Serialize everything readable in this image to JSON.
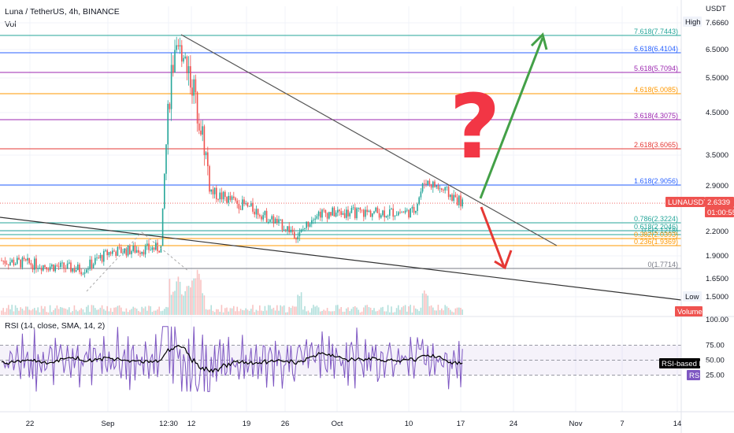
{
  "header": {
    "title": "Luna / TetherUS, 4h, BINANCE",
    "vol_label": "Vol",
    "currency": "USDT"
  },
  "price_axis": {
    "ticks": [
      "7.6660",
      "6.5000",
      "5.5000",
      "4.5000",
      "3.5000",
      "2.9000",
      "2.2000",
      "1.9000",
      "1.6500",
      "1.5000"
    ],
    "high_label": "High",
    "low_label": "Low",
    "volume_label": "Volume",
    "last_symbol": "LUNAUSDT",
    "last_price": "2.6339",
    "countdown": "01:00:55"
  },
  "fib_levels": [
    {
      "text": "7.618(7.7443)",
      "color": "#26a69a"
    },
    {
      "text": "6.618(6.4104)",
      "color": "#2962ff"
    },
    {
      "text": "5.618(5.7094)",
      "color": "#9c27b0"
    },
    {
      "text": "4.618(5.0085)",
      "color": "#ff9800"
    },
    {
      "text": "3.618(4.3075)",
      "color": "#9c27b0"
    },
    {
      "text": "2.618(3.6065)",
      "color": "#e53935"
    },
    {
      "text": "1.618(2.9056)",
      "color": "#2962ff"
    },
    {
      "text": "0.786(2.3224)",
      "color": "#26a69a"
    },
    {
      "text": "0.618(2.2046)",
      "color": "#26a69a"
    },
    {
      "text": "0.5(2.1218)",
      "color": "#26a69a"
    },
    {
      "text": "0.382(2.0393)",
      "color": "#ff9800"
    },
    {
      "text": "0.236(1.9369)",
      "color": "#ff9800"
    },
    {
      "text": "0(1.7714)",
      "color": "#787b86"
    }
  ],
  "rsi": {
    "title": "RSI (14, close, SMA, 14, 2)",
    "ticks": [
      "100.00",
      "75.00",
      "50.00",
      "25.00"
    ],
    "ma_label": "RSI-based MA",
    "rsi_label": "RSI"
  },
  "x_axis": {
    "ticks": [
      "22",
      "Sep",
      "12:30",
      "12",
      "19",
      "26",
      "Oct",
      "10",
      "17",
      "24",
      "Nov",
      "7",
      "14"
    ]
  },
  "annotations": {
    "question_mark": "?",
    "up_arrow_color": "#43a047",
    "down_arrow_color": "#e53935",
    "question_color": "#f23645"
  },
  "colors": {
    "up": "#26a69a",
    "down": "#ef5350",
    "rsi_line": "#7e57c2",
    "rsi_ma": "#000000"
  },
  "chart_data": {
    "type": "candlestick",
    "title": "Luna / TetherUS, 4h, BINANCE",
    "y_unit": "USDT",
    "y_range": [
      1.45,
      7.75
    ],
    "last_price": 2.6339,
    "price_profile": [
      {
        "date": "Aug 22",
        "price": 1.85
      },
      {
        "date": "Aug 29",
        "price": 1.75
      },
      {
        "date": "Sep 1",
        "price": 1.95
      },
      {
        "date": "Sep 5",
        "price": 2.0
      },
      {
        "date": "Sep 8",
        "price": 5.8
      },
      {
        "date": "Sep 9",
        "price": 6.6
      },
      {
        "date": "Sep 12",
        "price": 4.2
      },
      {
        "date": "Sep 14",
        "price": 2.8
      },
      {
        "date": "Sep 19",
        "price": 2.55
      },
      {
        "date": "Sep 26",
        "price": 2.15
      },
      {
        "date": "Oct 3",
        "price": 2.48
      },
      {
        "date": "Oct 10",
        "price": 2.5
      },
      {
        "date": "Oct 12",
        "price": 3.0
      },
      {
        "date": "Oct 16",
        "price": 2.63
      }
    ],
    "rsi_range": [
      0,
      100
    ],
    "rsi_levels": [
      70,
      50,
      30
    ],
    "rsi_last": 50
  }
}
